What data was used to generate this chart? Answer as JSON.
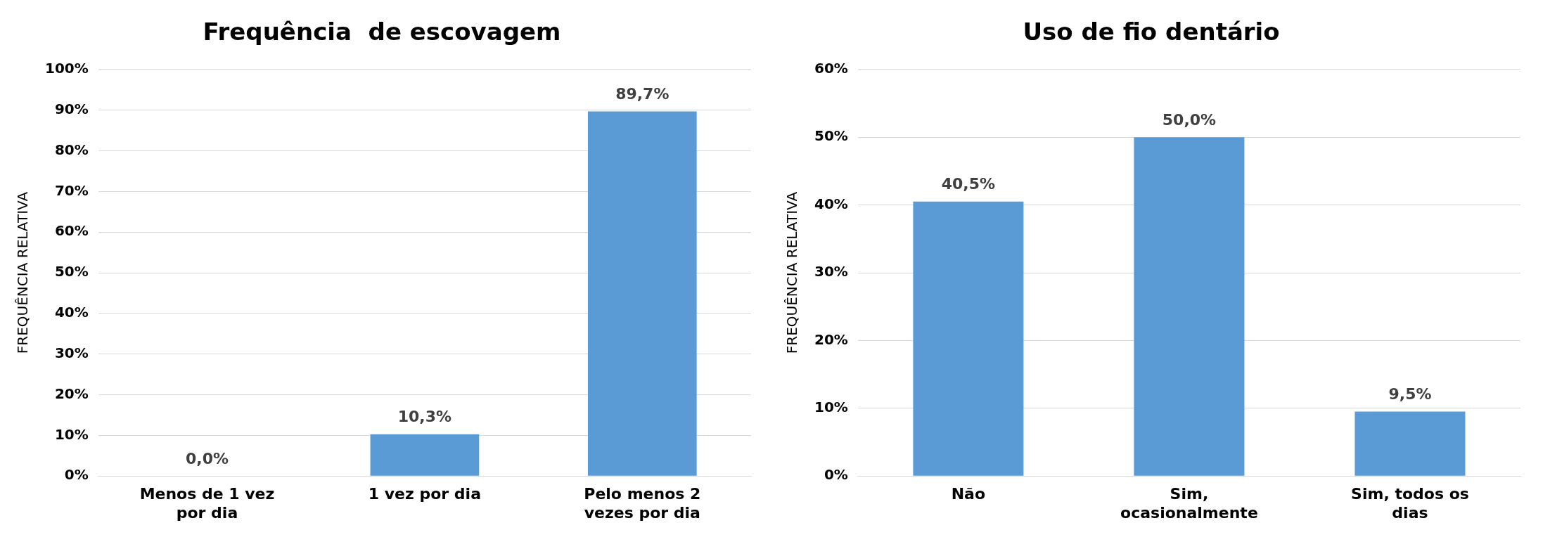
{
  "chart_data": [
    {
      "type": "bar",
      "title": "Frequência  de escovagem",
      "ylabel": "FREQUÊNCIA RELATIVA",
      "categories": [
        "Menos de 1 vez por dia",
        "1 vez por dia",
        "Pelo menos 2 vezes por dia"
      ],
      "values": [
        0,
        10.3,
        89.7
      ],
      "value_labels": [
        "0,0%",
        "10,3%",
        "89,7%"
      ],
      "color": "#5b9bd5",
      "ylim": [
        0,
        100
      ],
      "yticks": [
        {
          "value": 0,
          "label": "0%"
        },
        {
          "value": 10,
          "label": "10%"
        },
        {
          "value": 20,
          "label": "20%"
        },
        {
          "value": 30,
          "label": "30%"
        },
        {
          "value": 40,
          "label": "40%"
        },
        {
          "value": 50,
          "label": "50%"
        },
        {
          "value": 60,
          "label": "60%"
        },
        {
          "value": 70,
          "label": "70%"
        },
        {
          "value": 80,
          "label": "80%"
        },
        {
          "value": 90,
          "label": "90%"
        },
        {
          "value": 100,
          "label": "100%"
        }
      ],
      "grid": "y",
      "legend": false
    },
    {
      "type": "bar",
      "title": "Uso de fio dentário",
      "ylabel": "FREQUÊNCIA RELATIVA",
      "categories": [
        "Não",
        "Sim, ocasionalmente",
        "Sim, todos os dias"
      ],
      "values": [
        40.5,
        50.0,
        9.5
      ],
      "value_labels": [
        "40,5%",
        "50,0%",
        "9,5%"
      ],
      "color": "#5b9bd5",
      "ylim": [
        0,
        60
      ],
      "yticks": [
        {
          "value": 0,
          "label": "0%"
        },
        {
          "value": 10,
          "label": "10%"
        },
        {
          "value": 20,
          "label": "20%"
        },
        {
          "value": 30,
          "label": "30%"
        },
        {
          "value": 40,
          "label": "40%"
        },
        {
          "value": 50,
          "label": "50%"
        },
        {
          "value": 60,
          "label": "60%"
        }
      ],
      "grid": "y",
      "legend": false
    }
  ]
}
